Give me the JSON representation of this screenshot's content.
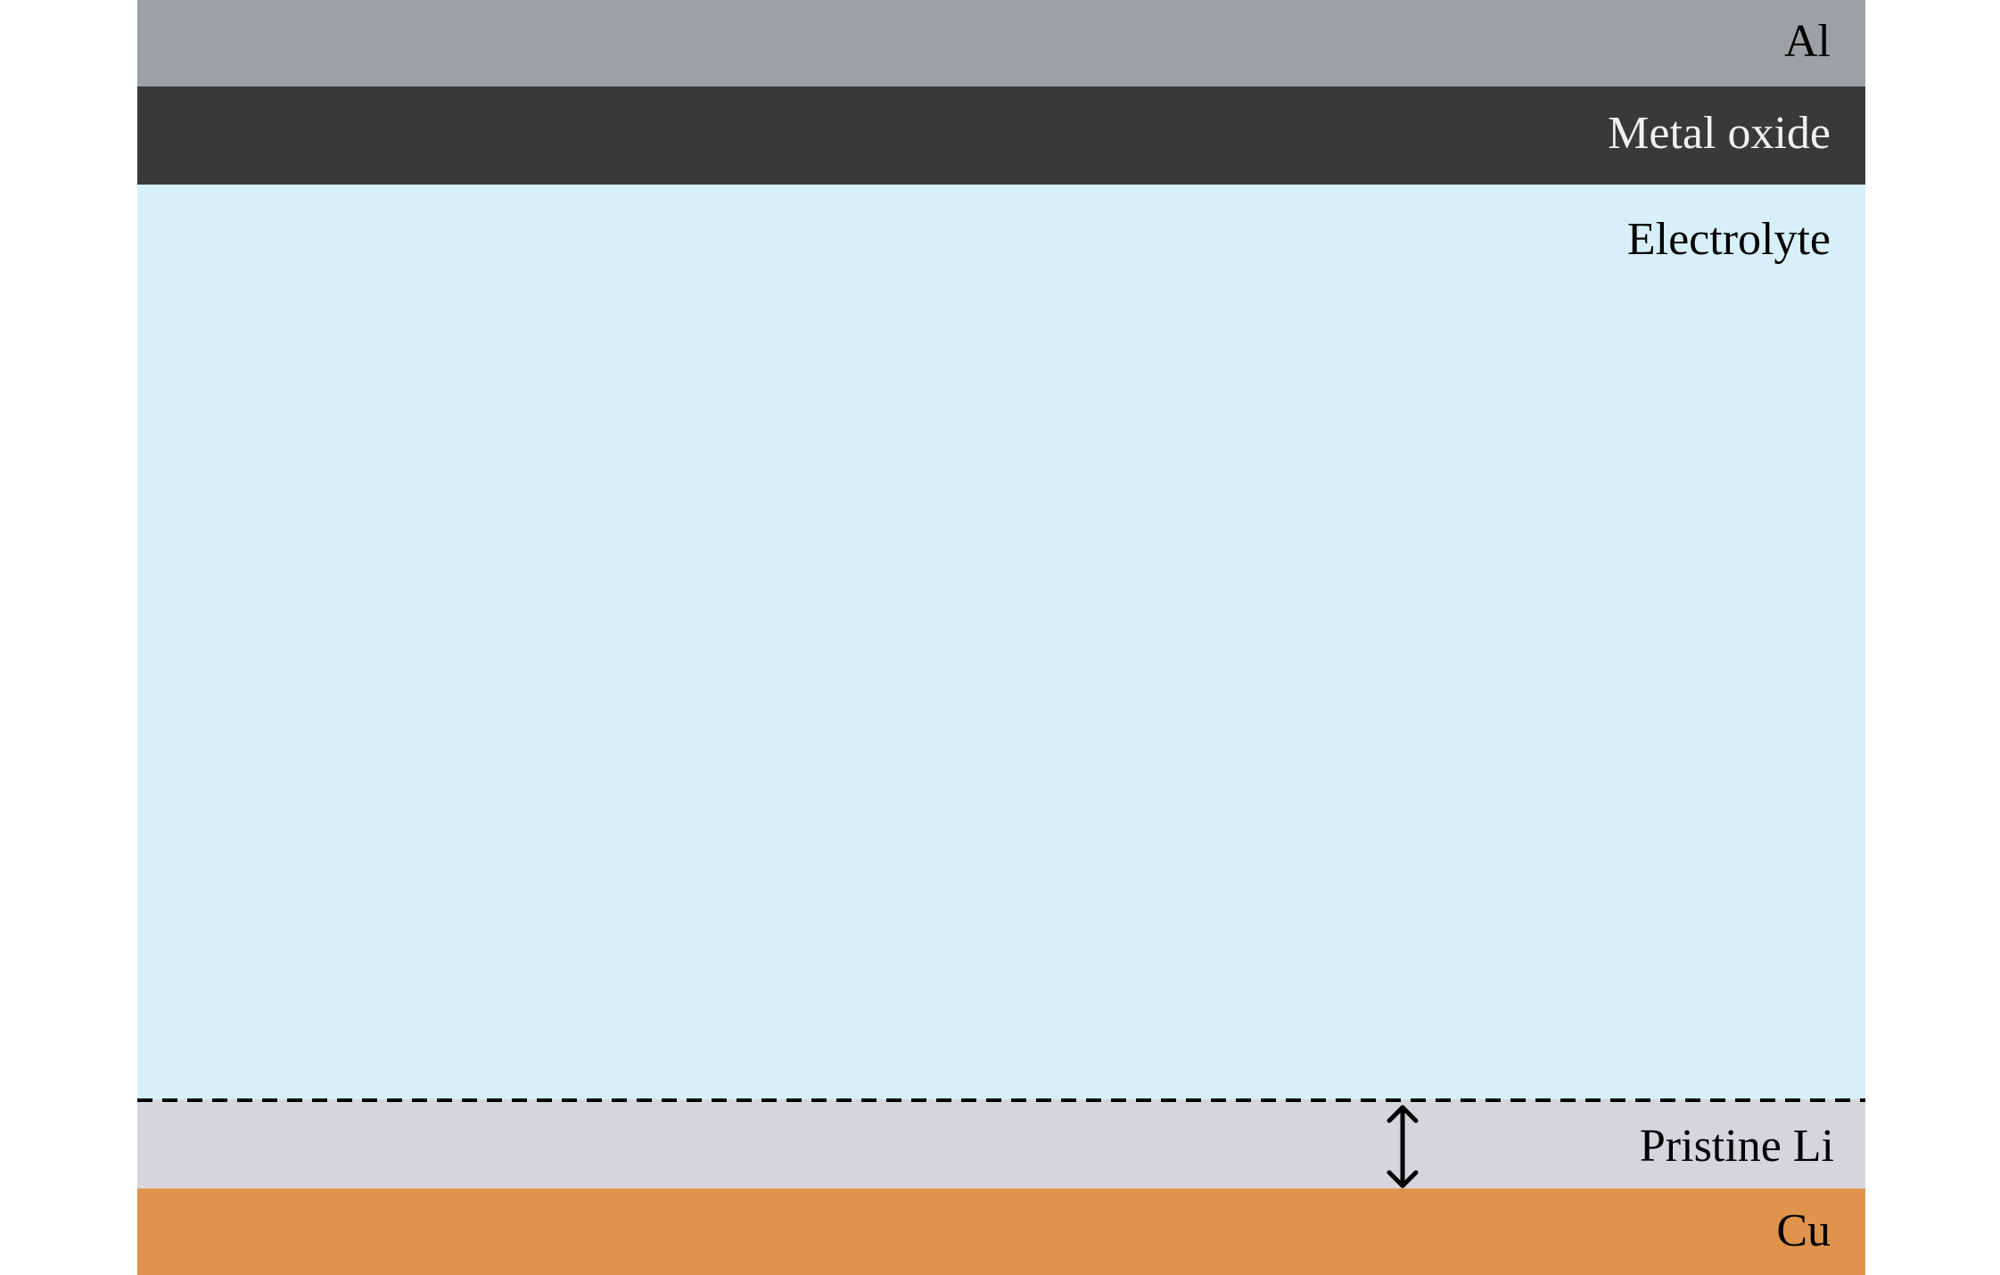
{
  "layers": [
    {
      "label": "Al"
    },
    {
      "label": "Metal oxide"
    },
    {
      "label": "Electrolyte"
    },
    {
      "label": "Pristine Li"
    },
    {
      "label": "Cu"
    }
  ]
}
